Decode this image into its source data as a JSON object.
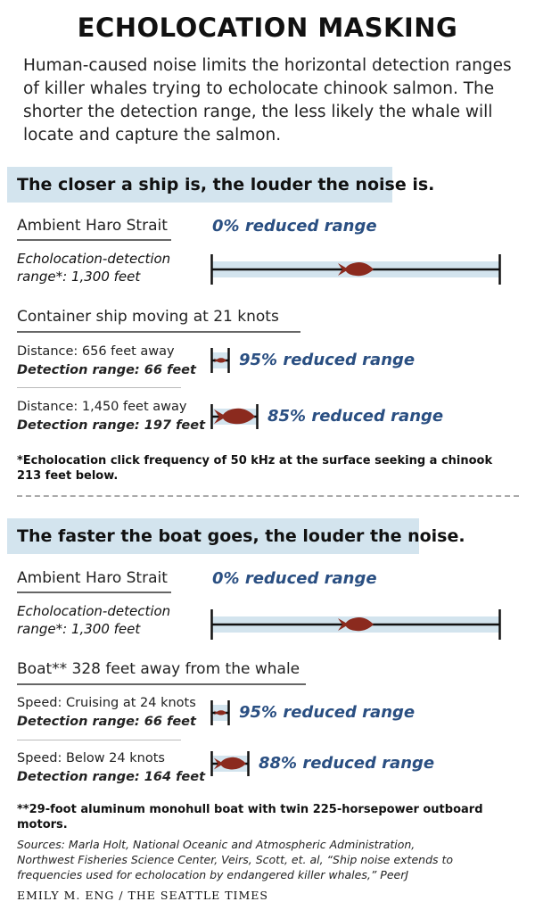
{
  "title": "ECHOLOCATION MASKING",
  "intro": "Human-caused noise limits the horizontal detection ranges of killer whales trying to echolocate chinook salmon. The shorter the detection range, the less likely the whale will locate and capture the salmon.",
  "colors": {
    "band": "#d3e4ee",
    "accent_text": "#2a4f82",
    "fish": "#8b2a1e"
  },
  "section1": {
    "heading": "The closer a ship is, the louder the noise is.",
    "ambient_label": "Ambient Haro Strait",
    "ambient_reduced": "0% reduced range",
    "ambient_note_1": "Echolocation-detection",
    "ambient_note_2": "range*: 1,300 feet",
    "source_label": "Container ship moving at 21 knots",
    "rows": [
      {
        "line1": "Distance: 656 feet away",
        "line2": "Detection range: 66 feet",
        "reduced": "95% reduced range",
        "range_fraction": 0.05
      },
      {
        "line1": "Distance: 1,450 feet away",
        "line2": "Detection range: 197 feet",
        "reduced": "85% reduced range",
        "range_fraction": 0.15
      }
    ],
    "footnote_1": "*Echolocation click frequency of 50 kHz at the surface seeking a chinook",
    "footnote_2": "213 feet below."
  },
  "section2": {
    "heading": "The faster the boat goes, the louder the noise.",
    "ambient_label": "Ambient Haro Strait",
    "ambient_reduced": "0% reduced range",
    "ambient_note_1": "Echolocation-detection",
    "ambient_note_2": "range*: 1,300 feet",
    "source_label": "Boat**  328 feet away from the whale",
    "rows": [
      {
        "line1": "Speed: Cruising at 24 knots",
        "line2": "Detection range: 66 feet",
        "reduced": "95% reduced range",
        "range_fraction": 0.05
      },
      {
        "line1": "Speed: Below 24 knots",
        "line2": "Detection range: 164 feet",
        "reduced": "88% reduced range",
        "range_fraction": 0.12
      }
    ],
    "footnote": "**29-foot aluminum monohull boat with twin 225-horsepower outboard motors."
  },
  "sources_1": "Sources: Marla Holt, National Oceanic and Atmospheric Administration,",
  "sources_2": "Northwest Fisheries Science Center, Veirs, Scott, et. al, “Ship noise extends to",
  "sources_3": "frequencies used for echolocation by endangered killer whales,” PeerJ",
  "credit": "EMILY M. ENG / THE SEATTLE TIMES"
}
